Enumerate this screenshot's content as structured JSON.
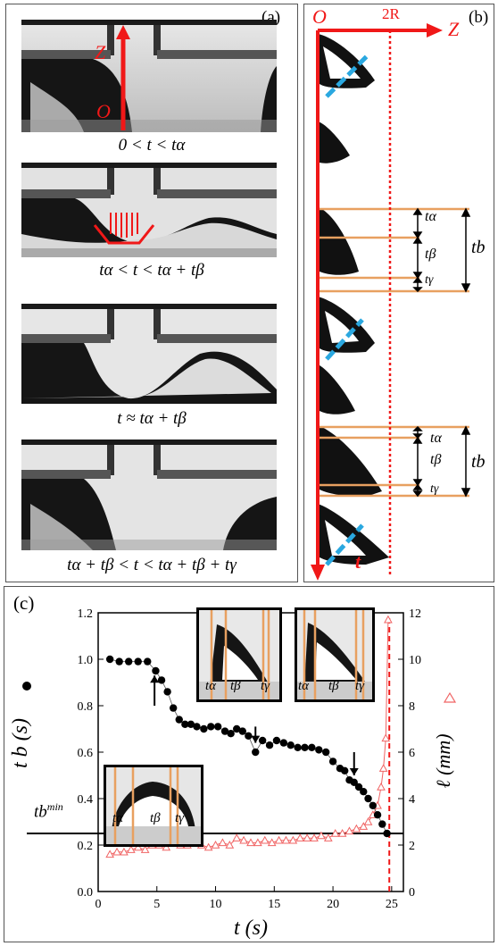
{
  "panel_a": {
    "label": "(a)",
    "axis_Z": "Z",
    "axis_O": "O",
    "captions": [
      "0 < t < tα",
      "tα < t < tα + tβ",
      "t ≈ tα + tβ",
      "tα + tβ < t < tα + tβ + tγ"
    ]
  },
  "panel_b": {
    "label": "(b)",
    "origin": "O",
    "mark_2R": "2R",
    "axis_Z": "Z",
    "axis_t": "t",
    "brackets": [
      {
        "ta": "tα",
        "tb_": "tβ",
        "tg": "tγ",
        "tb": "tb"
      },
      {
        "ta": "tα",
        "tb_": "tβ",
        "tg": "tγ",
        "tb": "tb"
      }
    ]
  },
  "panel_c": {
    "label": "(c)",
    "tbmin_label": "tb",
    "tbmin_sup": "min",
    "inset_labels": [
      "tα",
      "tβ",
      "tγ"
    ]
  },
  "colors": {
    "red": "#f01818",
    "orange": "#e8a060",
    "cyan": "#2aa8e0",
    "pink": "#f06464"
  },
  "chart_data": {
    "type": "scatter",
    "xlabel": "t (s)",
    "ylabel_left": "t b (s)",
    "ylabel_right": "ℓ (mm)",
    "xlim": [
      0,
      26
    ],
    "ylim_left": [
      0,
      1.2
    ],
    "ylim_right": [
      0,
      12
    ],
    "x_ticks": [
      "0",
      "5",
      "10",
      "15",
      "20",
      "25"
    ],
    "y_ticks_left": [
      "0.0",
      "0.2",
      "0.4",
      "0.6",
      "0.8",
      "1.0",
      "1.2"
    ],
    "y_ticks_right": [
      "0",
      "2",
      "4",
      "6",
      "8",
      "10",
      "12"
    ],
    "tb_min": 0.25,
    "vline_x": 24.8,
    "series": [
      {
        "x": [
          1.0,
          1.8,
          2.6,
          3.4,
          4.2,
          4.9,
          5.4,
          5.9,
          6.4,
          6.9,
          7.4,
          7.9,
          8.4,
          9.0,
          9.6,
          10.2,
          10.8,
          11.3,
          11.8,
          12.3,
          12.8,
          13.4,
          14.0,
          14.6,
          15.2,
          15.8,
          16.4,
          17.0,
          17.6,
          18.2,
          18.8,
          19.4,
          20.0,
          20.6,
          21.0,
          21.4,
          21.8,
          22.2,
          22.6,
          23.0,
          23.4,
          23.8,
          24.2,
          24.6
        ],
        "values": [
          1.0,
          0.99,
          0.99,
          0.99,
          0.99,
          0.95,
          0.91,
          0.86,
          0.79,
          0.74,
          0.72,
          0.72,
          0.71,
          0.7,
          0.71,
          0.71,
          0.69,
          0.68,
          0.7,
          0.69,
          0.67,
          0.6,
          0.65,
          0.63,
          0.65,
          0.64,
          0.63,
          0.62,
          0.62,
          0.62,
          0.61,
          0.6,
          0.56,
          0.53,
          0.52,
          0.48,
          0.47,
          0.45,
          0.43,
          0.4,
          0.37,
          0.33,
          0.29,
          0.25
        ]
      },
      {
        "x": [
          1.0,
          1.6,
          2.2,
          2.8,
          3.4,
          4.0,
          4.6,
          5.2,
          5.8,
          6.4,
          7.0,
          7.6,
          8.2,
          8.8,
          9.4,
          10.0,
          10.6,
          11.2,
          11.8,
          12.4,
          13.0,
          13.6,
          14.2,
          14.8,
          15.4,
          16.0,
          16.6,
          17.2,
          17.8,
          18.4,
          19.0,
          19.6,
          20.2,
          20.8,
          21.4,
          22.0,
          22.6,
          23.0,
          23.4,
          23.8,
          24.1,
          24.3,
          24.5,
          24.7
        ],
        "values": [
          1.6,
          1.7,
          1.7,
          1.8,
          1.9,
          1.8,
          2.0,
          2.0,
          1.9,
          2.1,
          2.0,
          2.0,
          2.2,
          2.0,
          1.9,
          2.0,
          2.1,
          2.0,
          2.3,
          2.2,
          2.1,
          2.1,
          2.2,
          2.1,
          2.2,
          2.2,
          2.2,
          2.3,
          2.3,
          2.3,
          2.4,
          2.3,
          2.5,
          2.5,
          2.6,
          2.7,
          2.8,
          3.0,
          3.3,
          3.7,
          4.5,
          5.3,
          6.6,
          11.7
        ]
      }
    ]
  }
}
